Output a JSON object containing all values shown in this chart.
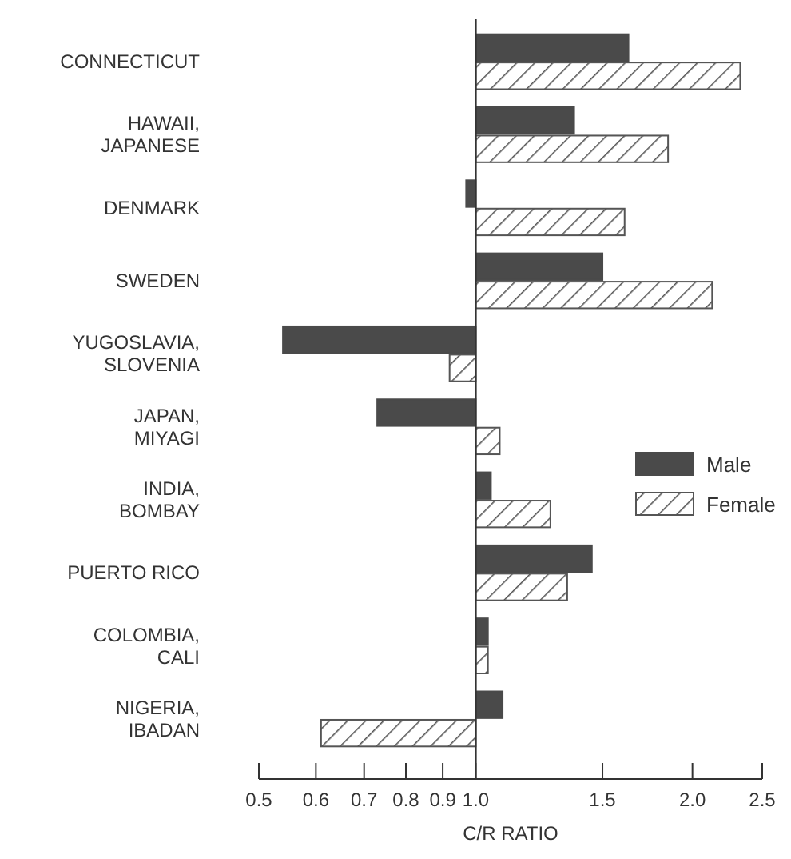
{
  "chart_data": {
    "type": "bar",
    "orientation": "horizontal",
    "log": "x",
    "xlabel": "C/R RATIO",
    "categories": [
      "CONNECTICUT",
      "HAWAII,\nJAPANESE",
      "DENMARK",
      "SWEDEN",
      "YUGOSLAVIA,\nSLOVENIA",
      "JAPAN,\nMIYAGI",
      "INDIA,\nBOMBAY",
      "PUERTO RICO",
      "COLOMBIA,\nCALI",
      "NIGERIA,\nIBADAN"
    ],
    "ref_lines": [
      {
        "axis": "x",
        "value": 1
      }
    ],
    "series": [
      {
        "name": "Male",
        "color": "#4a4a4a",
        "base": [
          1,
          1,
          1,
          1,
          1,
          1,
          1,
          1,
          1,
          1
        ],
        "values": [
          0.63,
          0.37,
          -0.03,
          0.5,
          -0.46,
          -0.27,
          0.05,
          0.45,
          0.04,
          0.09
        ]
      },
      {
        "name": "Female",
        "color": "#555555",
        "base": [
          1,
          1,
          1,
          1,
          1,
          1,
          1,
          1,
          1,
          1
        ],
        "values": [
          1.33,
          0.85,
          0.61,
          1.13,
          -0.08,
          0.08,
          0.27,
          0.34,
          0.04,
          -0.39
        ]
      }
    ],
    "xlim": [
      0.5,
      2.5
    ],
    "xticks": [
      0.5,
      0.6,
      0.7,
      0.8,
      0.9,
      {
        "value": 1,
        "label": "1.0"
      },
      1.5,
      {
        "value": 2,
        "label": "2.0"
      },
      2.5
    ],
    "legend": "right",
    "grid": false
  }
}
